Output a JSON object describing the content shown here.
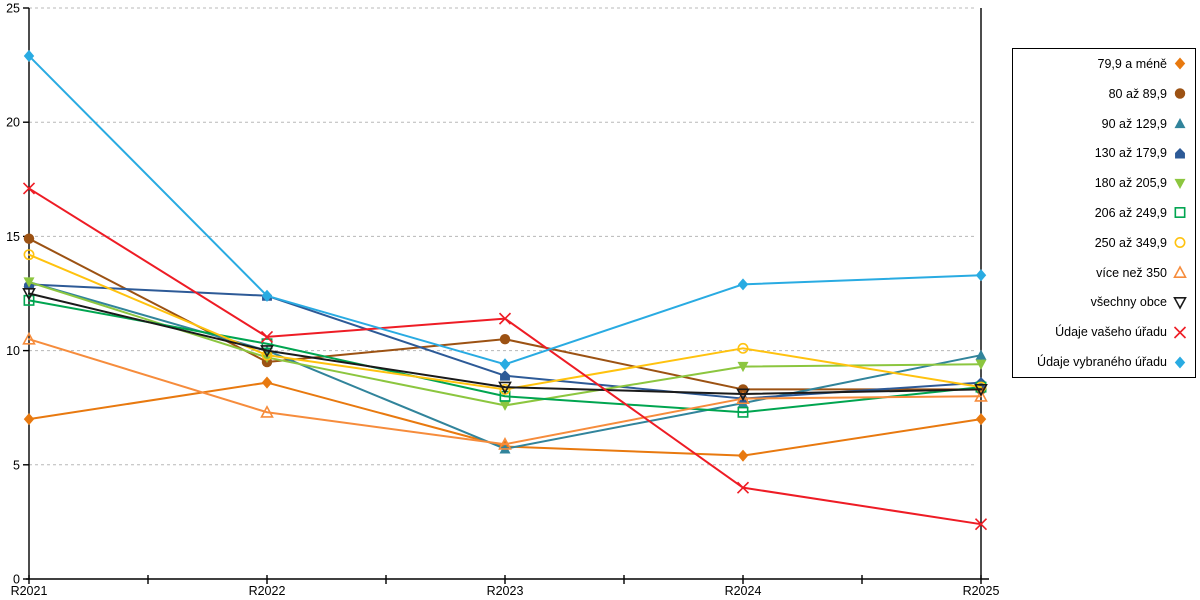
{
  "chart_data": {
    "type": "line",
    "title": "",
    "xlabel": "",
    "ylabel": "",
    "categories": [
      "R2021",
      "R2022",
      "R2023",
      "R2024",
      "R2025"
    ],
    "ylim": [
      0,
      25
    ],
    "yticks": [
      "0",
      "5",
      "10",
      "15",
      "20",
      "25"
    ],
    "grid": "horizontal-dashed",
    "gridline_color": "#b8b8b8",
    "axis_color": "#000000",
    "legend_position": "right-outside",
    "series": [
      {
        "name": "79,9 a méně",
        "marker": "diamond-filled",
        "color": "#E8790F",
        "values": [
          7.0,
          8.6,
          5.8,
          5.4,
          7.0
        ]
      },
      {
        "name": "80 až 89,9",
        "marker": "circle-filled",
        "color": "#9C5213",
        "values": [
          14.9,
          9.5,
          10.5,
          8.3,
          8.3
        ]
      },
      {
        "name": "90 až 129,9",
        "marker": "triangle-up-filled",
        "color": "#31849B",
        "values": [
          13.0,
          10.0,
          5.7,
          7.7,
          9.8
        ]
      },
      {
        "name": "130 až 179,9",
        "marker": "pentagon-filled",
        "color": "#2D5A97",
        "values": [
          12.9,
          12.4,
          8.9,
          7.9,
          8.6
        ]
      },
      {
        "name": "180 až 205,9",
        "marker": "triangle-down-filled",
        "color": "#8CC63F",
        "values": [
          13.0,
          9.7,
          7.6,
          9.3,
          9.4
        ]
      },
      {
        "name": "206 až 249,9",
        "marker": "square-open",
        "color": "#00A550",
        "values": [
          12.2,
          10.3,
          8.0,
          7.3,
          8.4
        ]
      },
      {
        "name": "250 až 349,9",
        "marker": "circle-open",
        "color": "#FFC20E",
        "values": [
          14.2,
          9.8,
          8.3,
          10.1,
          8.4
        ]
      },
      {
        "name": "více než 350",
        "marker": "triangle-up-open",
        "color": "#F68C3C",
        "values": [
          10.5,
          7.3,
          5.9,
          7.9,
          8.0
        ]
      },
      {
        "name": "všechny obce",
        "marker": "triangle-down-open",
        "color": "#1A1A1A",
        "values": [
          12.5,
          10.0,
          8.4,
          8.1,
          8.3
        ]
      },
      {
        "name": "Údaje vašeho úřadu",
        "marker": "x-cross",
        "color": "#EE1C25",
        "values": [
          17.1,
          10.6,
          11.4,
          4.0,
          2.4
        ]
      },
      {
        "name": "Údaje vybraného úřadu",
        "marker": "diamond-filled",
        "color": "#29ABE2",
        "values": [
          22.9,
          12.4,
          9.4,
          12.9,
          13.3
        ]
      }
    ]
  }
}
